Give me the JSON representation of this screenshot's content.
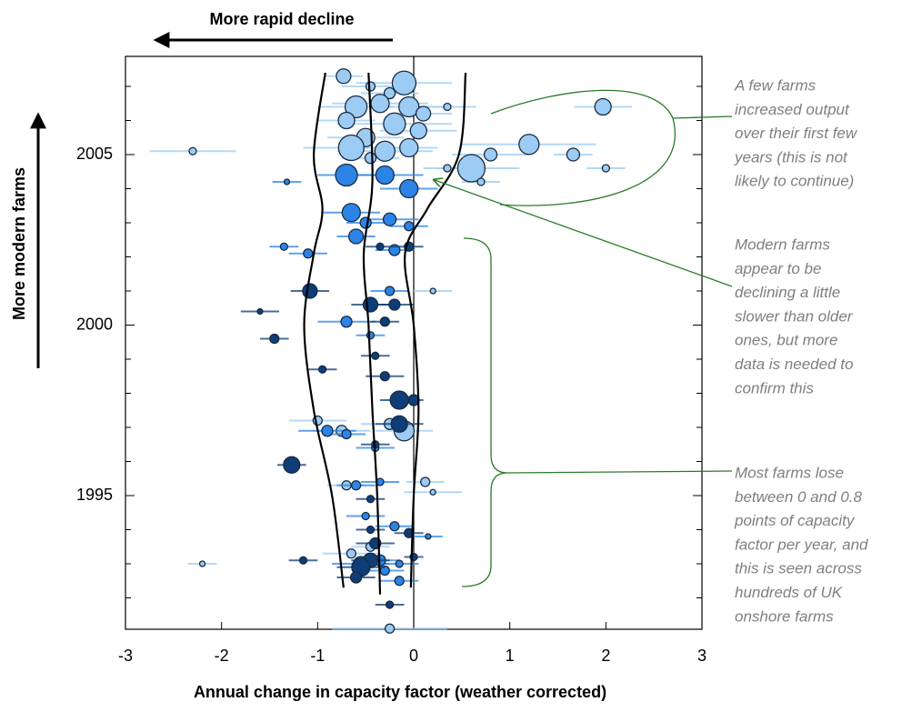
{
  "chart_data": {
    "type": "scatter",
    "x_label": "Annual change in capacity factor (weather corrected)",
    "top_arrow_label": "More rapid decline",
    "y_arrow_label": "More modern farms",
    "annotations": [
      [
        "A few farms",
        "increased output",
        "over their first few",
        "years (this is not",
        "likely to continue)"
      ],
      [
        "Modern farms",
        "appear to be",
        "declining a little",
        "slower than older",
        "ones, but more",
        "data is needed to",
        "confirm this"
      ],
      [
        "Most farms lose",
        "between 0 and 0.8",
        "points of capacity",
        "factor per year, and",
        "this is seen across",
        "hundreds of UK",
        "onshore farms"
      ]
    ],
    "xlim": [
      -3,
      3
    ],
    "xticks": [
      -3,
      -2,
      -1,
      0,
      1,
      2,
      3
    ],
    "ylim": [
      1991.08,
      2007.88
    ],
    "yticks": [
      1995,
      2000,
      2005
    ],
    "yminorticks": [
      1992,
      1993,
      1994,
      1996,
      1997,
      1998,
      1999,
      2001,
      2002,
      2003,
      2004,
      2006,
      2007
    ],
    "reference_line_x": 0,
    "curves": [
      {
        "x": [
          -0.92,
          -1.04,
          -0.95,
          -1.04,
          -1.14,
          -1.04,
          -0.85,
          -0.73
        ],
        "y": [
          2007.4,
          2005,
          2003.4,
          2002.1,
          2000,
          1997.5,
          1995,
          1992.3
        ]
      },
      {
        "x": [
          -0.47,
          -0.43,
          -0.52,
          -0.47,
          -0.43,
          -0.38,
          -0.35
        ],
        "y": [
          2007.4,
          2004.2,
          2002.1,
          2000,
          1997.5,
          1995,
          1992.1
        ]
      },
      {
        "x": [
          0.54,
          0.47,
          0.14,
          -0.09,
          0,
          0.05,
          0,
          -0.03
        ],
        "y": [
          2007.4,
          2005,
          2003.4,
          2002.1,
          2000,
          1997.5,
          1995,
          1992.3
        ]
      }
    ],
    "series": [
      {
        "color": "#9ccbf3",
        "x": [
          -0.73,
          -0.45,
          -0.1,
          -0.25,
          -0.6,
          -0.35,
          -0.05,
          0.1,
          -0.7,
          -0.2,
          0.05,
          -0.5,
          -0.65,
          -0.3,
          -0.05,
          -0.45,
          0.35,
          1.97,
          1.2,
          1.66,
          0.8,
          0.6,
          2.0,
          0.35,
          -2.3,
          0.7,
          -1.0,
          -0.75,
          -0.1,
          0.12,
          0.2,
          0.2,
          -0.45,
          -0.7,
          -0.25,
          -2.2,
          -0.65,
          -0.25
        ],
        "y": [
          2007.3,
          2007.0,
          2007.1,
          2006.8,
          2006.4,
          2006.5,
          2006.4,
          2006.2,
          2006.0,
          2005.9,
          2005.7,
          2005.5,
          2005.2,
          2005.1,
          2005.2,
          2004.9,
          2006.4,
          2006.4,
          2005.3,
          2005.0,
          2005.0,
          2004.6,
          2004.6,
          2004.6,
          2005.1,
          2004.2,
          1997.2,
          1996.9,
          1996.9,
          1995.4,
          1995.1,
          2001.0,
          1993.5,
          1995.3,
          1991.1,
          1993.0,
          1993.3,
          1997.1
        ],
        "sizes": [
          8,
          5,
          13,
          6,
          12,
          10,
          11,
          8,
          9,
          12,
          9,
          10,
          14,
          11,
          10,
          6,
          4,
          9,
          11,
          7,
          7,
          15,
          4,
          4,
          4,
          4,
          5,
          6,
          11,
          5,
          3,
          3,
          5,
          5,
          5,
          3,
          5,
          6
        ],
        "err": [
          0.2,
          0.3,
          0.5,
          0.3,
          0.4,
          0.5,
          0.4,
          0.3,
          0.3,
          0.6,
          0.4,
          0.4,
          0.5,
          0.5,
          0.3,
          0.3,
          0.3,
          0.3,
          0.7,
          0.2,
          0.4,
          0.5,
          0.2,
          0.1,
          0.45,
          0.2,
          0.3,
          0.3,
          0.3,
          0.2,
          0.3,
          0.2,
          0.2,
          0.2,
          0.6,
          0.15,
          0.3,
          0.3
        ]
      },
      {
        "color": "#2b84e6",
        "x": [
          -0.7,
          -0.3,
          -0.05,
          -1.32,
          -0.65,
          -0.5,
          -0.25,
          -0.05,
          -0.6,
          -1.35,
          -1.1,
          -0.2,
          -0.7,
          -0.25,
          -0.45,
          -0.9,
          -0.4,
          -0.35,
          -0.5,
          -0.2,
          -0.35,
          -0.55,
          -0.3,
          -0.15,
          -0.15,
          -0.7,
          -0.6,
          0.15
        ],
        "y": [
          2004.4,
          2004.4,
          2004.0,
          2004.2,
          2003.3,
          2003.0,
          2003.1,
          2002.9,
          2002.6,
          2002.3,
          2002.1,
          2002.2,
          2000.1,
          2001.0,
          1999.7,
          1996.9,
          1996.4,
          1995.4,
          1994.4,
          1994.1,
          1993.1,
          1993.0,
          1992.8,
          1993.0,
          1992.5,
          1996.8,
          1995.3,
          1993.8
        ],
        "sizes": [
          12,
          10,
          10,
          3,
          10,
          6,
          7,
          5,
          8,
          4,
          5,
          6,
          6,
          5,
          4,
          6,
          4,
          4,
          4,
          5,
          6,
          8,
          5,
          4,
          5,
          5,
          5,
          3
        ],
        "err": [
          0.3,
          0.4,
          0.3,
          0.15,
          0.3,
          0.2,
          0.3,
          0.2,
          0.2,
          0.15,
          0.2,
          0.2,
          0.3,
          0.2,
          0.15,
          0.3,
          0.2,
          0.2,
          0.2,
          0.2,
          0.2,
          0.3,
          0.2,
          0.2,
          0.2,
          0.2,
          0.2,
          0.15
        ]
      },
      {
        "color": "#0e3d78",
        "x": [
          -1.08,
          -0.45,
          -0.3,
          -1.45,
          -0.2,
          -0.4,
          -0.95,
          -0.3,
          -0.15,
          0.0,
          -0.15,
          -0.4,
          -1.27,
          -0.45,
          -0.05,
          -0.4,
          -0.45,
          -0.55,
          -0.6,
          -1.15,
          -1.6,
          -0.05,
          -0.35,
          -0.45,
          -0.25,
          0.0
        ],
        "y": [
          2001.0,
          2000.6,
          2000.1,
          1999.6,
          2000.6,
          1999.1,
          1998.7,
          1998.5,
          1997.8,
          1997.8,
          1997.1,
          1996.5,
          1995.9,
          1994.0,
          1993.9,
          1993.6,
          1993.1,
          1992.9,
          1992.6,
          1993.1,
          2000.4,
          2002.3,
          2002.3,
          1994.9,
          1991.8,
          1993.2
        ],
        "sizes": [
          8,
          8,
          5,
          5,
          6,
          4,
          4,
          5,
          10,
          6,
          9,
          4,
          9,
          4,
          5,
          6,
          8,
          10,
          6,
          4,
          3,
          5,
          4,
          4,
          4,
          4
        ],
        "err": [
          0.2,
          0.2,
          0.15,
          0.15,
          0.2,
          0.15,
          0.15,
          0.2,
          0.2,
          0.1,
          0.25,
          0.15,
          0.15,
          0.15,
          0.15,
          0.2,
          0.2,
          0.25,
          0.2,
          0.15,
          0.2,
          0.15,
          0.15,
          0.15,
          0.15,
          0.1
        ]
      }
    ]
  }
}
